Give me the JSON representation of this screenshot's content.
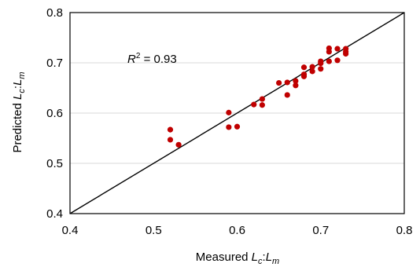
{
  "chart_data": {
    "type": "scatter",
    "title": "",
    "xlabel": {
      "prefix": "Measured ",
      "var1": "L",
      "sub1": "c",
      "sep": ":",
      "var2": "L",
      "sub2": "m"
    },
    "ylabel": {
      "prefix": "Predicted ",
      "var1": "L",
      "sub1": "c",
      "sep": ":",
      "var2": "L",
      "sub2": "m"
    },
    "xlim": [
      0.4,
      0.8
    ],
    "ylim": [
      0.4,
      0.8
    ],
    "x_ticks": [
      "0.4",
      "0.5",
      "0.6",
      "0.7",
      "0.8"
    ],
    "y_ticks": [
      "0.4",
      "0.5",
      "0.6",
      "0.7",
      "0.8"
    ],
    "grid": "horizontal",
    "annotation": {
      "var": "R",
      "sup": "2",
      "text": " = 0.93"
    },
    "reference_line": {
      "from": [
        0.4,
        0.4
      ],
      "to": [
        0.8,
        0.8
      ]
    },
    "marker_color": "#c00000",
    "points": [
      {
        "x": 0.52,
        "y": 0.567
      },
      {
        "x": 0.52,
        "y": 0.547
      },
      {
        "x": 0.53,
        "y": 0.537
      },
      {
        "x": 0.59,
        "y": 0.601
      },
      {
        "x": 0.59,
        "y": 0.572
      },
      {
        "x": 0.6,
        "y": 0.573
      },
      {
        "x": 0.62,
        "y": 0.617
      },
      {
        "x": 0.63,
        "y": 0.628
      },
      {
        "x": 0.63,
        "y": 0.616
      },
      {
        "x": 0.65,
        "y": 0.66
      },
      {
        "x": 0.66,
        "y": 0.661
      },
      {
        "x": 0.66,
        "y": 0.636
      },
      {
        "x": 0.67,
        "y": 0.664
      },
      {
        "x": 0.67,
        "y": 0.655
      },
      {
        "x": 0.68,
        "y": 0.691
      },
      {
        "x": 0.68,
        "y": 0.677
      },
      {
        "x": 0.68,
        "y": 0.673
      },
      {
        "x": 0.69,
        "y": 0.692
      },
      {
        "x": 0.69,
        "y": 0.683
      },
      {
        "x": 0.7,
        "y": 0.703
      },
      {
        "x": 0.7,
        "y": 0.699
      },
      {
        "x": 0.7,
        "y": 0.688
      },
      {
        "x": 0.71,
        "y": 0.729
      },
      {
        "x": 0.71,
        "y": 0.722
      },
      {
        "x": 0.71,
        "y": 0.703
      },
      {
        "x": 0.72,
        "y": 0.728
      },
      {
        "x": 0.72,
        "y": 0.705
      },
      {
        "x": 0.73,
        "y": 0.728
      },
      {
        "x": 0.73,
        "y": 0.722
      },
      {
        "x": 0.73,
        "y": 0.718
      }
    ]
  }
}
